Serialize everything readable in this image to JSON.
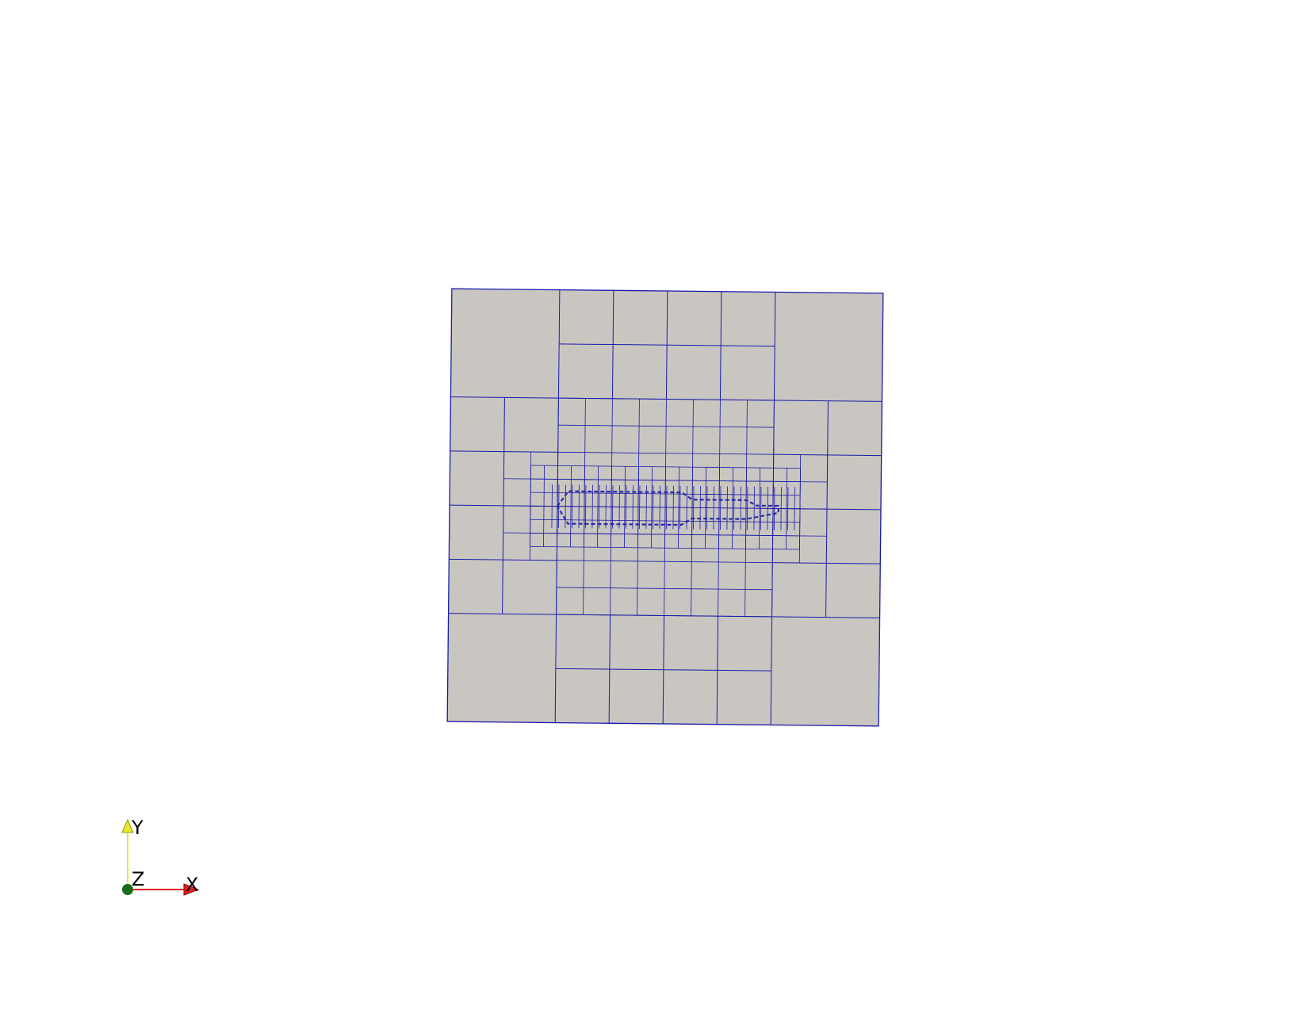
{
  "colors": {
    "background": "#ffffff",
    "mesh_fill": "#c9c6c1",
    "mesh_edges": "#1a1aa8",
    "axis_x": "#e02020",
    "axis_y": "#e8e830",
    "axis_z": "#1a6a1a"
  },
  "orientation_axes": {
    "x_label": "X",
    "y_label": "Y",
    "z_label": "Z"
  }
}
